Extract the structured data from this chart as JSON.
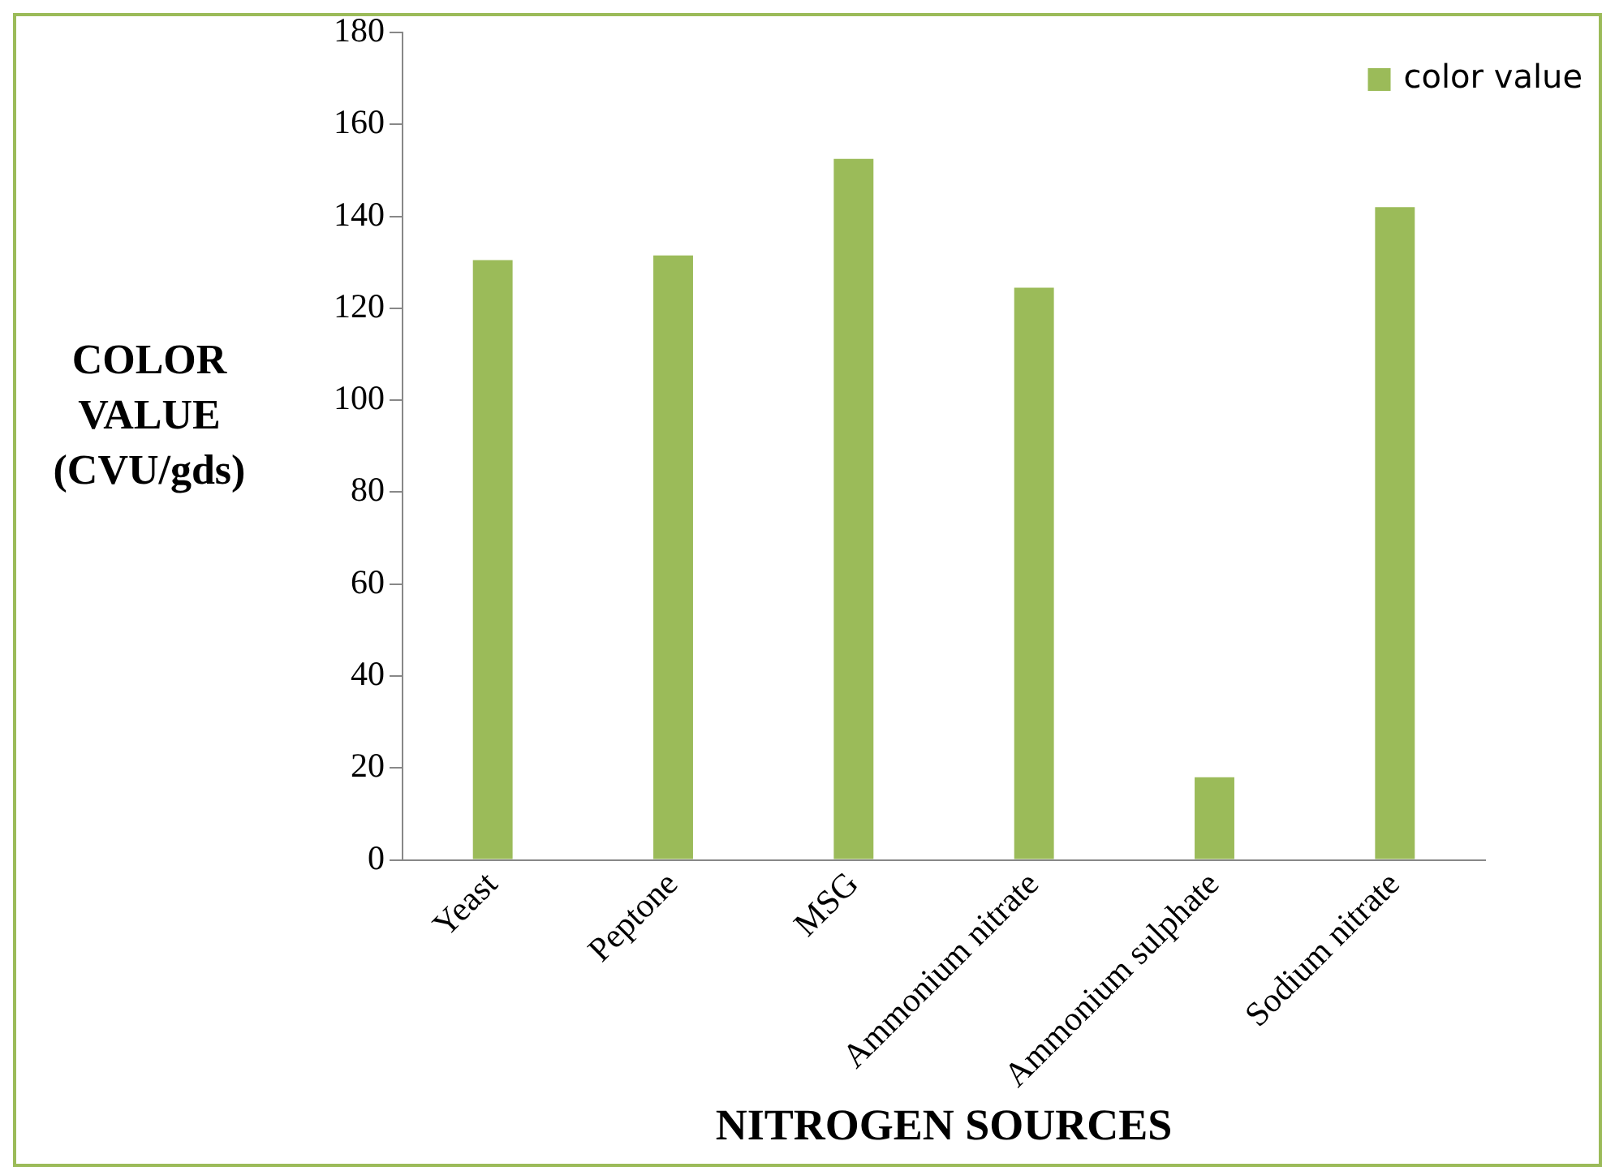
{
  "chart_data": {
    "type": "bar",
    "xlabel": "NITROGEN SOURCES",
    "ylabel": "COLOR VALUE (CVU/gds)",
    "categories": [
      "Yeast",
      "Peptone",
      "MSG",
      "Ammonium nitrate",
      "Ammonium sulphate",
      "Sodium nitrate"
    ],
    "series": [
      {
        "name": "color value",
        "color": "#9bbb59",
        "values": [
          130.5,
          131.5,
          152.5,
          124.5,
          18,
          142
        ]
      }
    ],
    "ylim": [
      0,
      180
    ],
    "yticks": [
      0,
      20,
      40,
      60,
      80,
      100,
      120,
      140,
      160,
      180
    ],
    "grid": false,
    "legend": "top right"
  }
}
